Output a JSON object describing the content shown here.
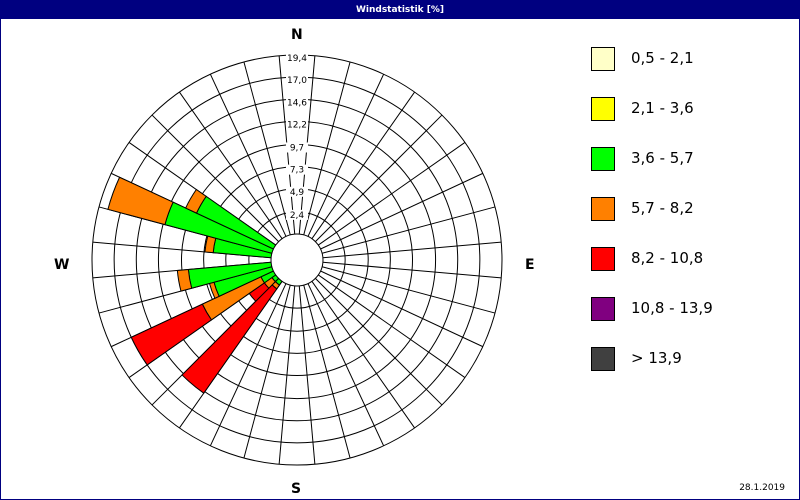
{
  "window": {
    "title": "Windstatistik [%]"
  },
  "directions": {
    "n": "N",
    "e": "E",
    "s": "S",
    "w": "W"
  },
  "footer": {
    "date": "28.1.2019"
  },
  "legend": [
    {
      "label": "0,5 - 2,1",
      "color": "#ffffc8"
    },
    {
      "label": "2,1 - 3,6",
      "color": "#ffff00"
    },
    {
      "label": "3,6 - 5,7",
      "color": "#00ff00"
    },
    {
      "label": "5,7 - 8,2",
      "color": "#ff8000"
    },
    {
      "label": "8,2 - 10,8",
      "color": "#ff0000"
    },
    {
      "label": "10,8 - 13,9",
      "color": "#800080"
    },
    {
      "label": " > 13,9",
      "color": "#404040"
    }
  ],
  "chart_data": {
    "type": "polar-stacked-bar",
    "title": "Windstatistik [%]",
    "radial_axis": {
      "ticks": [
        2.4,
        4.9,
        7.3,
        9.7,
        12.2,
        14.6,
        17.0,
        19.4
      ],
      "tick_labels": [
        "2,4",
        "4,9",
        "7,3",
        "9,7",
        "12,2",
        "14,6",
        "17,0",
        "19,4"
      ],
      "max": 19.4
    },
    "sectors": 36,
    "sector_width_deg": 10,
    "speed_classes": [
      "0,5 - 2,1",
      "2,1 - 3,6",
      "3,6 - 5,7",
      "5,7 - 8,2",
      "8,2 - 10,8",
      "10,8 - 13,9",
      " > 13,9"
    ],
    "bars": [
      {
        "direction_deg": 220,
        "segments": [
          {
            "class": "3,6 - 5,7",
            "to": 0.5
          },
          {
            "class": "5,7 - 8,2",
            "to": 1.0
          },
          {
            "class": "8,2 - 10,8",
            "to": 14.8
          }
        ]
      },
      {
        "direction_deg": 230,
        "segments": [
          {
            "class": "3,6 - 5,7",
            "to": 0.5
          },
          {
            "class": "5,7 - 8,2",
            "to": 1.5
          },
          {
            "class": "8,2 - 10,8",
            "to": 3.5
          }
        ]
      },
      {
        "direction_deg": 240,
        "segments": [
          {
            "class": "3,6 - 5,7",
            "to": 1.5
          },
          {
            "class": "5,7 - 8,2",
            "to": 8.5
          },
          {
            "class": "8,2 - 10,8",
            "to": 17.0
          }
        ]
      },
      {
        "direction_deg": 250,
        "segments": [
          {
            "class": "3,6 - 5,7",
            "to": 6.5
          },
          {
            "class": "5,7 - 8,2",
            "to": 7.0
          }
        ]
      },
      {
        "direction_deg": 260,
        "segments": [
          {
            "class": "3,6 - 5,7",
            "to": 9.0
          },
          {
            "class": "5,7 - 8,2",
            "to": 10.2
          }
        ]
      },
      {
        "direction_deg": 280,
        "segments": [
          {
            "class": "3,6 - 5,7",
            "to": 6.3
          },
          {
            "class": "5,7 - 8,2",
            "to": 7.2
          }
        ]
      },
      {
        "direction_deg": 290,
        "segments": [
          {
            "class": "3,6 - 5,7",
            "to": 12.0
          },
          {
            "class": "5,7 - 8,2",
            "to": 18.4
          }
        ]
      },
      {
        "direction_deg": 300,
        "segments": [
          {
            "class": "3,6 - 5,7",
            "to": 9.2
          },
          {
            "class": "5,7 - 8,2",
            "to": 10.5
          }
        ]
      }
    ]
  }
}
